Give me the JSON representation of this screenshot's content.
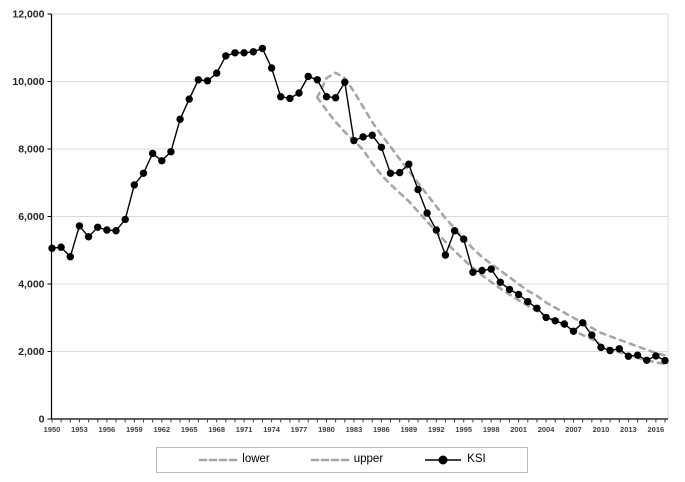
{
  "chart_data": {
    "type": "line",
    "title": "",
    "xlabel": "",
    "ylabel": "",
    "x_start_year": 1950,
    "x_end_year": 2017,
    "ylim": [
      0,
      12000
    ],
    "y_major_unit": 2000,
    "ytick_labels": [
      "0",
      "2,000",
      "4,000",
      "6,000",
      "8,000",
      "10,000",
      "12,000"
    ],
    "xtick_label_years": [
      1950,
      1953,
      1956,
      1959,
      1962,
      1965,
      1968,
      1971,
      1974,
      1977,
      1980,
      1983,
      1986,
      1989,
      1992,
      1995,
      1998,
      2001,
      2004,
      2007,
      2010,
      2013,
      2016
    ],
    "grid": "horizontal",
    "legend_position": "bottom",
    "colors": {
      "band": "#a6a6a6",
      "ksi": "#000000",
      "gridline": "#d9d9d9",
      "axis": "#000000",
      "tick_label": "#404040",
      "plot_right_border": "#d9d9d9"
    },
    "series": [
      {
        "name": "lower",
        "style": "dashed",
        "start_year": 1979,
        "values": [
          9525,
          9150,
          8800,
          8500,
          8250,
          7975,
          7580,
          7230,
          6950,
          6700,
          6450,
          6150,
          5850,
          5550,
          5250,
          4980,
          4720,
          4480,
          4260,
          4060,
          3870,
          3690,
          3520,
          3360,
          3200,
          3050,
          2900,
          2760,
          2620,
          2490,
          2370,
          2200,
          2080,
          1980,
          1890,
          1810,
          1740,
          1680,
          1630
        ]
      },
      {
        "name": "upper",
        "style": "dashed",
        "start_year": 1979,
        "values": [
          9525,
          10100,
          10260,
          10100,
          9700,
          9250,
          8800,
          8415,
          8070,
          7700,
          7350,
          7000,
          6650,
          6300,
          5950,
          5650,
          5350,
          5050,
          4800,
          4600,
          4400,
          4200,
          4000,
          3800,
          3650,
          3450,
          3300,
          3150,
          3000,
          2850,
          2700,
          2550,
          2450,
          2350,
          2250,
          2150,
          2050,
          1960,
          1880
        ]
      },
      {
        "name": "KSI",
        "style": "line-markers",
        "start_year": 1950,
        "values": [
          5060,
          5090,
          4810,
          5720,
          5400,
          5680,
          5600,
          5580,
          5915,
          6935,
          7280,
          7870,
          7650,
          7920,
          8880,
          9480,
          10050,
          10020,
          10250,
          10760,
          10850,
          10850,
          10880,
          10980,
          10400,
          9550,
          9500,
          9660,
          10150,
          10050,
          9550,
          9520,
          9980,
          8250,
          8360,
          8410,
          8050,
          7280,
          7300,
          7550,
          6800,
          6100,
          5600,
          4860,
          5580,
          5330,
          4350,
          4400,
          4440,
          4050,
          3840,
          3690,
          3480,
          3280,
          3010,
          2910,
          2815,
          2600,
          2850,
          2490,
          2120,
          2030,
          2080,
          1860,
          1890,
          1740,
          1870,
          1730
        ]
      }
    ]
  },
  "legend": {
    "items": [
      {
        "label": "lower"
      },
      {
        "label": "upper"
      },
      {
        "label": "KSI"
      }
    ]
  }
}
